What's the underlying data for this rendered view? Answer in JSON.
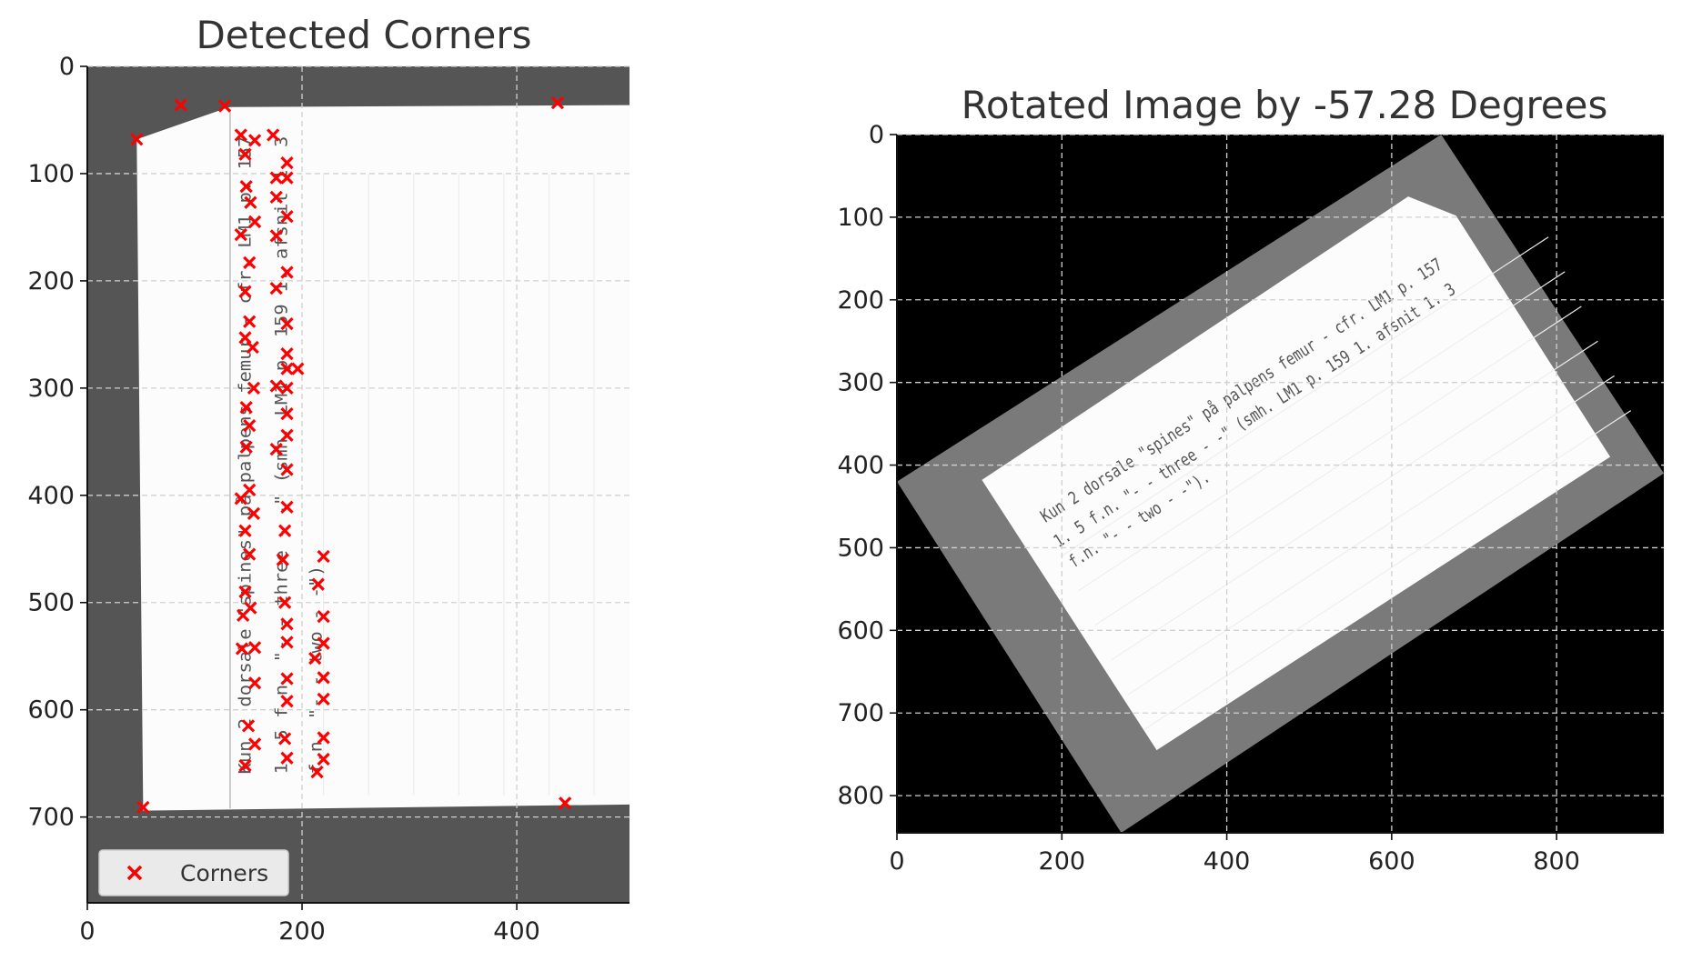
{
  "chart_data": [
    {
      "type": "scatter",
      "title": "Detected Corners",
      "xlim": [
        0,
        505
      ],
      "ylim": [
        780,
        0
      ],
      "x_ticks": [
        0,
        200,
        400
      ],
      "y_ticks": [
        0,
        100,
        200,
        300,
        400,
        500,
        600,
        700
      ],
      "grid": true,
      "background": "#555555",
      "card_polygon": [
        [
          132,
          38
        ],
        [
          522,
          36
        ],
        [
          530,
          688
        ],
        [
          52,
          694
        ],
        [
          46,
          68
        ]
      ],
      "card_margin_line_x": 133,
      "legend": {
        "label": "Corners",
        "placement": "bottom-left"
      },
      "marker_color": "#ff0000",
      "series": [
        {
          "name": "Corners",
          "points": [
            [
              46,
              68
            ],
            [
              87,
              36
            ],
            [
              128,
              37
            ],
            [
              438,
              34
            ],
            [
              52,
              691
            ],
            [
              445,
              687
            ],
            [
              143,
              64
            ],
            [
              147,
              82
            ],
            [
              156,
              69
            ],
            [
              173,
              64
            ],
            [
              148,
              112
            ],
            [
              152,
              127
            ],
            [
              156,
              145
            ],
            [
              143,
              157
            ],
            [
              151,
              183
            ],
            [
              147,
              210
            ],
            [
              151,
              238
            ],
            [
              147,
              253
            ],
            [
              154,
              262
            ],
            [
              155,
              300
            ],
            [
              148,
              318
            ],
            [
              151,
              335
            ],
            [
              148,
              355
            ],
            [
              143,
              403
            ],
            [
              151,
              395
            ],
            [
              155,
              417
            ],
            [
              147,
              433
            ],
            [
              151,
              455
            ],
            [
              147,
              490
            ],
            [
              152,
              505
            ],
            [
              145,
              512
            ],
            [
              144,
              543
            ],
            [
              156,
              542
            ],
            [
              156,
              575
            ],
            [
              150,
              615
            ],
            [
              156,
              632
            ],
            [
              147,
              652
            ],
            [
              176,
              104
            ],
            [
              186,
              90
            ],
            [
              186,
              104
            ],
            [
              176,
              122
            ],
            [
              186,
              140
            ],
            [
              176,
              158
            ],
            [
              186,
              192
            ],
            [
              176,
              207
            ],
            [
              186,
              240
            ],
            [
              186,
              268
            ],
            [
              176,
              298
            ],
            [
              186,
              282
            ],
            [
              196,
              282
            ],
            [
              186,
              300
            ],
            [
              186,
              324
            ],
            [
              186,
              344
            ],
            [
              176,
              357
            ],
            [
              186,
              376
            ],
            [
              186,
              411
            ],
            [
              184,
              433
            ],
            [
              182,
              460
            ],
            [
              184,
              500
            ],
            [
              186,
              520
            ],
            [
              186,
              537
            ],
            [
              186,
              571
            ],
            [
              186,
              592
            ],
            [
              184,
              627
            ],
            [
              186,
              645
            ],
            [
              220,
              457
            ],
            [
              215,
              483
            ],
            [
              220,
              513
            ],
            [
              220,
              538
            ],
            [
              212,
              552
            ],
            [
              220,
              570
            ],
            [
              220,
              590
            ],
            [
              220,
              626
            ],
            [
              220,
              646
            ],
            [
              214,
              658
            ]
          ]
        }
      ],
      "card_text_lines": [
        "Kun 2 dorsale \"spines\" på palpens femur - cfr. LM1 p. 157",
        "1. 5 f.n. \"- - three - -\" (smh. LM1 p. 159 1. afsnit 1. 3",
        "f.n. \"- - two - -\")."
      ]
    },
    {
      "type": "image",
      "title": "Rotated Image by -57.28 Degrees",
      "xlim": [
        0,
        930
      ],
      "ylim": [
        845,
        0
      ],
      "x_ticks": [
        0,
        200,
        400,
        600,
        800
      ],
      "y_ticks": [
        0,
        100,
        200,
        300,
        400,
        500,
        600,
        700,
        800
      ],
      "grid": true,
      "background": "#000000",
      "rotated_frame_polygon": [
        [
          660,
          0
        ],
        [
          930,
          410
        ],
        [
          272,
          845
        ],
        [
          0,
          420
        ]
      ],
      "rotated_card_polygon": [
        [
          620,
          75
        ],
        [
          678,
          98
        ],
        [
          865,
          390
        ],
        [
          315,
          745
        ],
        [
          103,
          418
        ]
      ],
      "card_text_lines": [
        "Kun 2 dorsale \"spines\" på palpens femur - cfr. LM1 p. 157",
        "1. 5 f.n. \"- - three - -\" (smh. LM1 p. 159 1. afsnit 1. 3",
        "f.n. \"- - two - -\")."
      ]
    }
  ]
}
